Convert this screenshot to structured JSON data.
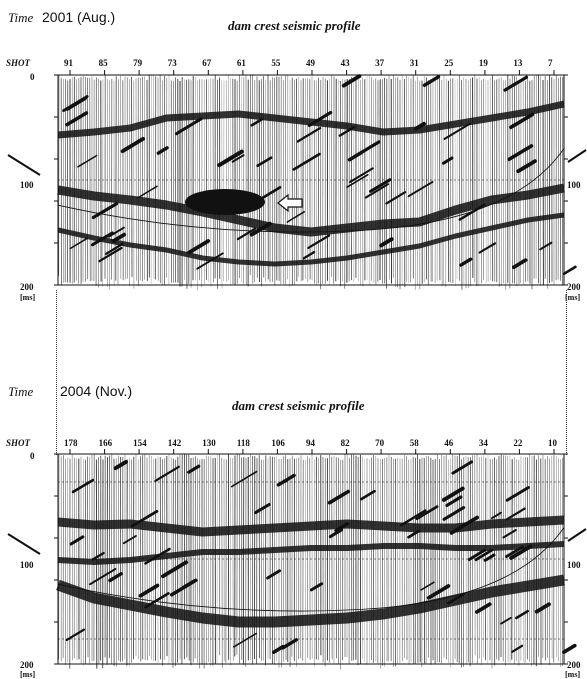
{
  "panels": [
    {
      "time_label": "Time",
      "time_value": "2001 (Aug.)",
      "title": "dam crest seismic profile",
      "shot_label": "SHOT",
      "shots": [
        "91",
        "85",
        "79",
        "73",
        "67",
        "61",
        "55",
        "49",
        "43",
        "37",
        "31",
        "25",
        "19",
        "13",
        "7"
      ],
      "y_ticks": [
        "0",
        "100",
        "200"
      ],
      "right_ticks": [
        "100",
        "200"
      ],
      "unit": "[ms]"
    },
    {
      "time_label": "Time",
      "time_value": "2004 (Nov.)",
      "title": "dam crest seismic profile",
      "shot_label": "SHOT",
      "shots": [
        "178",
        "166",
        "154",
        "142",
        "130",
        "118",
        "106",
        "94",
        "82",
        "70",
        "58",
        "46",
        "34",
        "22",
        "10"
      ],
      "y_ticks": [
        "0",
        "100",
        "200"
      ],
      "right_ticks": [
        "100",
        "200"
      ],
      "unit": "[ms]"
    }
  ],
  "colors": {
    "ink": "#111111",
    "paper": "#ffffff"
  }
}
